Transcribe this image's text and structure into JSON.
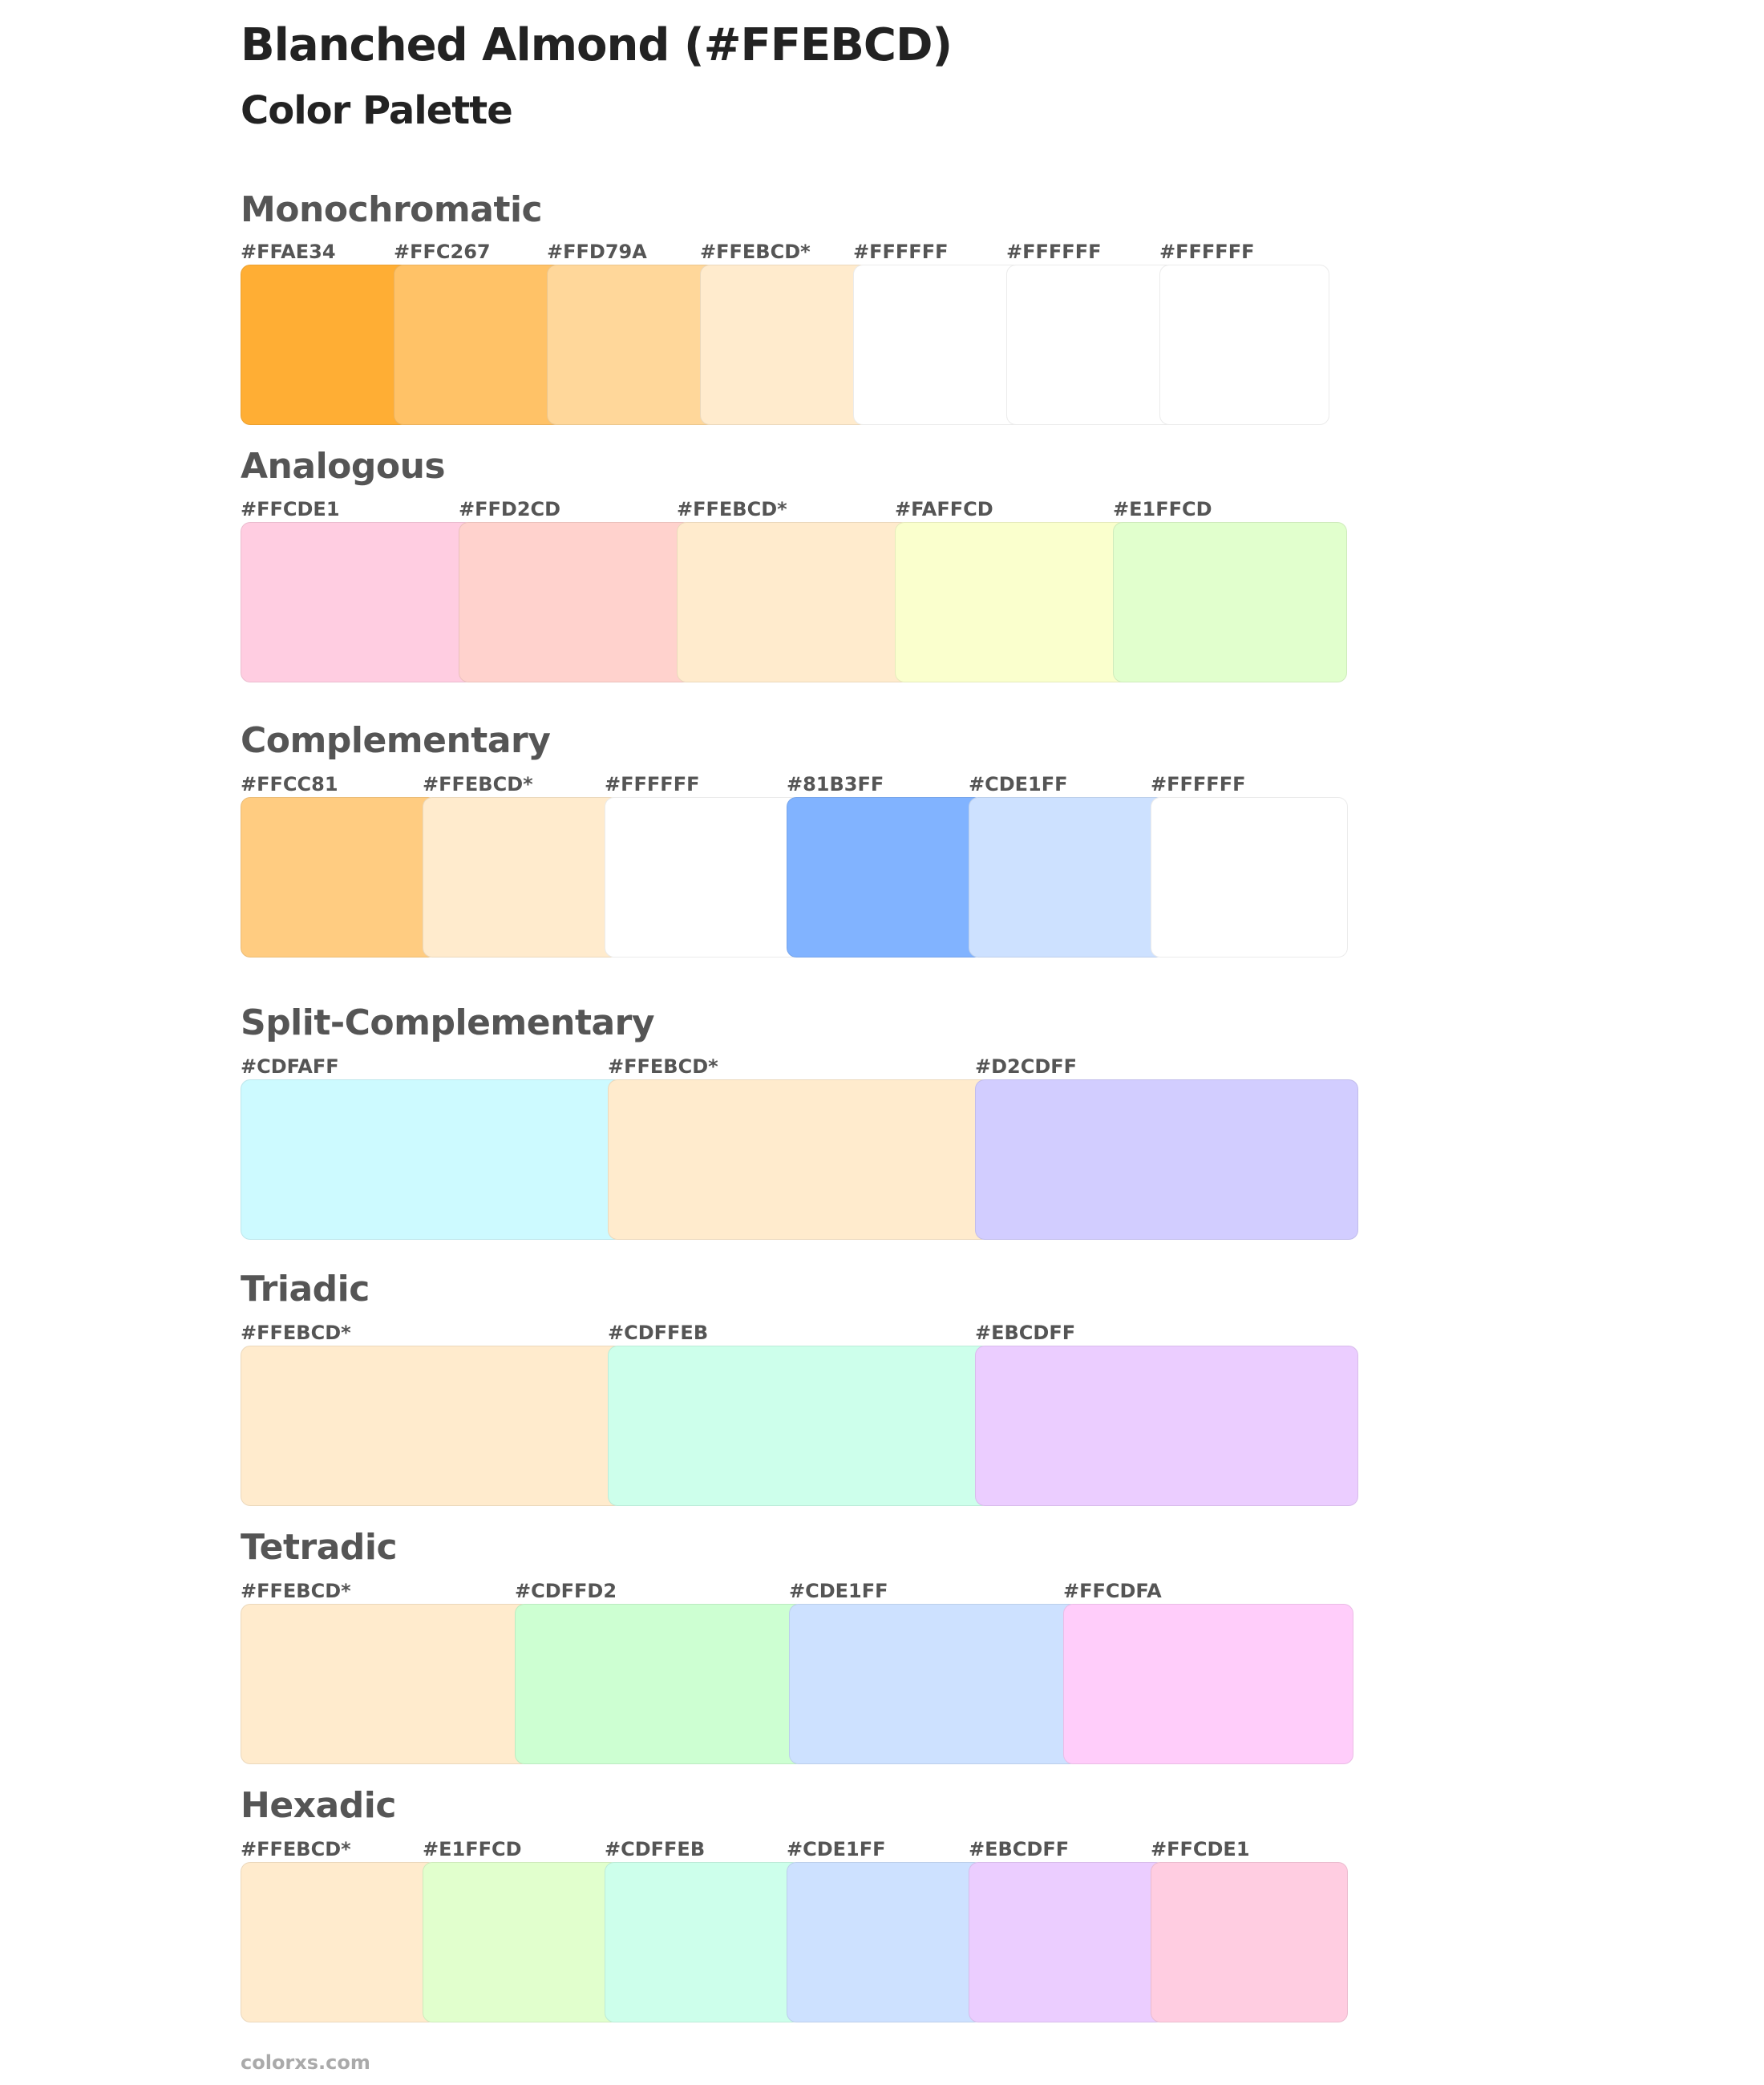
{
  "title": "Blanched Almond (#FFEBCD)",
  "subtitle": "Color Palette",
  "sections": [
    {
      "title": "Monochromatic",
      "swatches": [
        {
          "label": "#FFAE34",
          "color": "#FFAE34"
        },
        {
          "label": "#FFC267",
          "color": "#FFC267"
        },
        {
          "label": "#FFD79A",
          "color": "#FFD79A"
        },
        {
          "label": "#FFEBCD*",
          "color": "#FFEBCD"
        },
        {
          "label": "#FFFFFF",
          "color": "#FFFFFF"
        },
        {
          "label": "#FFFFFF",
          "color": "#FFFFFF"
        },
        {
          "label": "#FFFFFF",
          "color": "#FFFFFF"
        }
      ]
    },
    {
      "title": "Analogous",
      "swatches": [
        {
          "label": "#FFCDE1",
          "color": "#FFCDE1"
        },
        {
          "label": "#FFD2CD",
          "color": "#FFD2CD"
        },
        {
          "label": "#FFEBCD*",
          "color": "#FFEBCD"
        },
        {
          "label": "#FAFFCD",
          "color": "#FAFFCD"
        },
        {
          "label": "#E1FFCD",
          "color": "#E1FFCD"
        }
      ]
    },
    {
      "title": "Complementary",
      "swatches": [
        {
          "label": "#FFCC81",
          "color": "#FFCC81"
        },
        {
          "label": "#FFEBCD*",
          "color": "#FFEBCD"
        },
        {
          "label": "#FFFFFF",
          "color": "#FFFFFF"
        },
        {
          "label": "#81B3FF",
          "color": "#81B3FF"
        },
        {
          "label": "#CDE1FF",
          "color": "#CDE1FF"
        },
        {
          "label": "#FFFFFF",
          "color": "#FFFFFF"
        }
      ]
    },
    {
      "title": "Split-Complementary",
      "swatches": [
        {
          "label": "#CDFAFF",
          "color": "#CDFAFF"
        },
        {
          "label": "#FFEBCD*",
          "color": "#FFEBCD"
        },
        {
          "label": "#D2CDFF",
          "color": "#D2CDFF"
        }
      ]
    },
    {
      "title": "Triadic",
      "swatches": [
        {
          "label": "#FFEBCD*",
          "color": "#FFEBCD"
        },
        {
          "label": "#CDFFEB",
          "color": "#CDFFEB"
        },
        {
          "label": "#EBCDFF",
          "color": "#EBCDFF"
        }
      ]
    },
    {
      "title": "Tetradic",
      "swatches": [
        {
          "label": "#FFEBCD*",
          "color": "#FFEBCD"
        },
        {
          "label": "#CDFFD2",
          "color": "#CDFFD2"
        },
        {
          "label": "#CDE1FF",
          "color": "#CDE1FF"
        },
        {
          "label": "#FFCDFA",
          "color": "#FFCDFA"
        }
      ]
    },
    {
      "title": "Hexadic",
      "swatches": [
        {
          "label": "#FFEBCD*",
          "color": "#FFEBCD"
        },
        {
          "label": "#E1FFCD",
          "color": "#E1FFCD"
        },
        {
          "label": "#CDFFEB",
          "color": "#CDFFEB"
        },
        {
          "label": "#CDE1FF",
          "color": "#CDE1FF"
        },
        {
          "label": "#EBCDFF",
          "color": "#EBCDFF"
        },
        {
          "label": "#FFCDE1",
          "color": "#FFCDE1"
        }
      ]
    }
  ],
  "footer": "colorxs.com"
}
